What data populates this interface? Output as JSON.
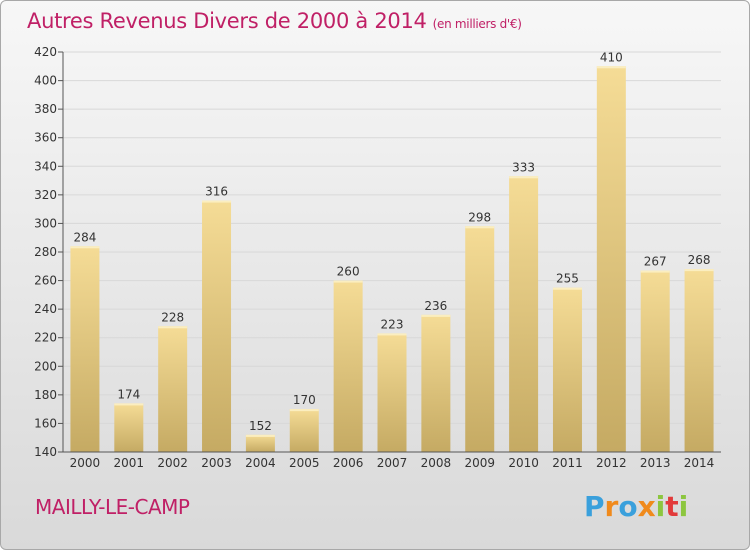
{
  "title": "Autres Revenus Divers de 2000 à 2014",
  "title_unit": "(en milliers d'€)",
  "town": "MAILLY-LE-CAMP",
  "logo": {
    "letters": [
      "P",
      "r",
      "o",
      "x",
      "i",
      "t",
      "i"
    ]
  },
  "colors": {
    "accent": "#c02066",
    "bar_top": "#f5dc96",
    "bar_bottom": "#c5aa63",
    "axis": "#555555",
    "grid": "#d8d8d8"
  },
  "chart_data": {
    "type": "bar",
    "categories": [
      "2000",
      "2001",
      "2002",
      "2003",
      "2004",
      "2005",
      "2006",
      "2007",
      "2008",
      "2009",
      "2010",
      "2011",
      "2012",
      "2013",
      "2014"
    ],
    "values": [
      284,
      174,
      228,
      316,
      152,
      170,
      260,
      223,
      236,
      298,
      333,
      255,
      410,
      267,
      268
    ],
    "data_labels": [
      "284",
      "174",
      "228",
      "316",
      "152",
      "170",
      "260",
      "223",
      "236",
      "298",
      "333",
      "255",
      "410",
      "267",
      "268"
    ],
    "title": "Autres Revenus Divers de 2000 à 2014",
    "xlabel": "",
    "ylabel": "",
    "ylim": [
      140,
      420
    ],
    "yticks": [
      140,
      160,
      180,
      200,
      220,
      240,
      260,
      280,
      300,
      320,
      340,
      360,
      380,
      400,
      420
    ],
    "ytick_labels": [
      "140",
      "160",
      "180",
      "200",
      "220",
      "240",
      "260",
      "280",
      "300",
      "320",
      "340",
      "360",
      "380",
      "400",
      "420"
    ],
    "grid": true,
    "legend": "none"
  }
}
